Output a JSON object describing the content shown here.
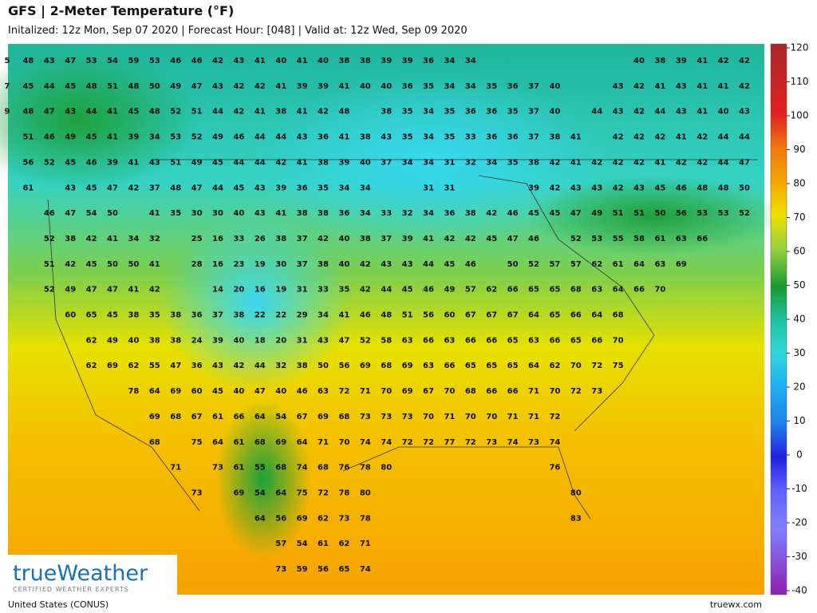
{
  "header": {
    "title": "GFS | 2-Meter Temperature (°F)",
    "subtitle": "Initalized: 12z Mon, Sep 07 2020 | Forecast Hour: [048] | Valid at: 12z Wed, Sep 09 2020"
  },
  "map": {
    "temperature_rows": [
      [
        5,
        48,
        43,
        47,
        53,
        54,
        59,
        53,
        46,
        46,
        42,
        43,
        41,
        40,
        41,
        40,
        38,
        38,
        39,
        39,
        36,
        34,
        34,
        null,
        null,
        null,
        null,
        null,
        null,
        null,
        40,
        38,
        39,
        41,
        42,
        42
      ],
      [
        7,
        45,
        44,
        45,
        48,
        51,
        48,
        50,
        49,
        47,
        43,
        42,
        42,
        41,
        39,
        39,
        41,
        40,
        40,
        36,
        35,
        34,
        34,
        35,
        36,
        37,
        40,
        null,
        null,
        43,
        42,
        41,
        43,
        41,
        41,
        42
      ],
      [
        9,
        48,
        47,
        43,
        44,
        41,
        45,
        48,
        52,
        51,
        44,
        42,
        41,
        38,
        41,
        42,
        48,
        null,
        38,
        35,
        34,
        35,
        36,
        36,
        35,
        37,
        40,
        null,
        44,
        43,
        42,
        44,
        43,
        41,
        40,
        43
      ],
      [
        null,
        51,
        46,
        49,
        45,
        41,
        39,
        34,
        53,
        52,
        49,
        46,
        44,
        44,
        43,
        36,
        41,
        38,
        43,
        35,
        34,
        35,
        33,
        36,
        36,
        37,
        38,
        41,
        null,
        42,
        42,
        42,
        41,
        42,
        44,
        44
      ],
      [
        null,
        56,
        52,
        45,
        46,
        39,
        41,
        43,
        51,
        49,
        45,
        44,
        44,
        42,
        41,
        38,
        39,
        40,
        37,
        34,
        34,
        31,
        32,
        34,
        35,
        38,
        42,
        41,
        42,
        42,
        42,
        41,
        42,
        42,
        44,
        47
      ],
      [
        null,
        61,
        null,
        43,
        45,
        47,
        42,
        37,
        48,
        47,
        44,
        45,
        43,
        39,
        36,
        35,
        34,
        34,
        null,
        null,
        31,
        31,
        null,
        null,
        null,
        39,
        42,
        43,
        43,
        42,
        43,
        45,
        46,
        48,
        48,
        50
      ],
      [
        null,
        null,
        46,
        47,
        54,
        50,
        null,
        41,
        35,
        30,
        30,
        40,
        43,
        41,
        38,
        38,
        36,
        34,
        33,
        32,
        34,
        36,
        38,
        42,
        46,
        45,
        45,
        47,
        49,
        51,
        51,
        50,
        56,
        53,
        53,
        52
      ],
      [
        null,
        null,
        52,
        38,
        42,
        41,
        34,
        32,
        null,
        25,
        16,
        33,
        26,
        38,
        37,
        42,
        40,
        38,
        37,
        39,
        41,
        42,
        42,
        45,
        47,
        46,
        null,
        52,
        53,
        55,
        58,
        61,
        63,
        66,
        null,
        null
      ],
      [
        null,
        null,
        51,
        42,
        45,
        50,
        50,
        41,
        null,
        28,
        16,
        23,
        19,
        30,
        37,
        38,
        40,
        42,
        43,
        43,
        44,
        45,
        46,
        null,
        50,
        52,
        57,
        57,
        62,
        61,
        64,
        63,
        69,
        null,
        null,
        null
      ],
      [
        null,
        null,
        52,
        49,
        47,
        47,
        41,
        42,
        null,
        null,
        14,
        20,
        16,
        19,
        31,
        33,
        35,
        42,
        44,
        45,
        46,
        49,
        57,
        62,
        66,
        65,
        65,
        68,
        63,
        64,
        66,
        70,
        null,
        null,
        null,
        null
      ],
      [
        null,
        null,
        null,
        60,
        65,
        45,
        38,
        35,
        38,
        36,
        37,
        38,
        22,
        22,
        29,
        34,
        41,
        46,
        48,
        51,
        56,
        60,
        67,
        67,
        67,
        64,
        65,
        66,
        64,
        68,
        null,
        null,
        null,
        null,
        null,
        null
      ],
      [
        null,
        null,
        null,
        null,
        62,
        49,
        40,
        38,
        38,
        24,
        39,
        40,
        18,
        20,
        31,
        43,
        47,
        52,
        58,
        63,
        66,
        63,
        66,
        66,
        65,
        63,
        66,
        65,
        66,
        70,
        null,
        null,
        null,
        null,
        null,
        null
      ],
      [
        null,
        null,
        null,
        null,
        62,
        69,
        62,
        55,
        47,
        36,
        43,
        42,
        44,
        32,
        38,
        50,
        56,
        69,
        68,
        69,
        63,
        66,
        65,
        65,
        65,
        64,
        62,
        70,
        72,
        75,
        null,
        null,
        null,
        null,
        null,
        null
      ],
      [
        null,
        null,
        null,
        null,
        null,
        null,
        78,
        64,
        69,
        60,
        45,
        40,
        47,
        40,
        46,
        63,
        72,
        71,
        70,
        69,
        67,
        70,
        68,
        66,
        66,
        71,
        70,
        72,
        73,
        null,
        null,
        null,
        null,
        null,
        null,
        null
      ],
      [
        null,
        null,
        null,
        null,
        null,
        null,
        null,
        69,
        68,
        67,
        61,
        66,
        64,
        54,
        67,
        69,
        68,
        73,
        73,
        73,
        70,
        71,
        70,
        70,
        71,
        71,
        72,
        null,
        null,
        null,
        null,
        null,
        null,
        null,
        null,
        null
      ],
      [
        null,
        null,
        null,
        null,
        null,
        null,
        null,
        68,
        null,
        75,
        64,
        61,
        68,
        69,
        64,
        71,
        70,
        74,
        74,
        72,
        72,
        77,
        72,
        73,
        74,
        73,
        74,
        null,
        null,
        null,
        null,
        null,
        null,
        null,
        null,
        null
      ],
      [
        null,
        null,
        null,
        null,
        null,
        null,
        null,
        null,
        71,
        null,
        73,
        61,
        55,
        68,
        74,
        68,
        76,
        78,
        80,
        null,
        null,
        null,
        null,
        null,
        null,
        null,
        76,
        null,
        null,
        null,
        null,
        null,
        null,
        null,
        null,
        null
      ],
      [
        null,
        null,
        null,
        null,
        null,
        null,
        null,
        null,
        null,
        73,
        null,
        69,
        54,
        64,
        75,
        72,
        78,
        80,
        null,
        null,
        null,
        null,
        null,
        null,
        null,
        null,
        null,
        80,
        null,
        null,
        null,
        null,
        null,
        null,
        null,
        null
      ],
      [
        null,
        null,
        null,
        null,
        null,
        null,
        null,
        null,
        null,
        null,
        null,
        null,
        64,
        56,
        69,
        62,
        73,
        78,
        null,
        null,
        null,
        null,
        null,
        null,
        null,
        null,
        null,
        83,
        null,
        null,
        null,
        null,
        null,
        null,
        null,
        null
      ],
      [
        null,
        null,
        null,
        null,
        null,
        null,
        null,
        null,
        null,
        null,
        null,
        null,
        null,
        57,
        54,
        61,
        62,
        71,
        null,
        null,
        null,
        null,
        null,
        null,
        null,
        null,
        null,
        null,
        null,
        null,
        null,
        null,
        null,
        null,
        null,
        null
      ],
      [
        null,
        null,
        null,
        null,
        null,
        null,
        null,
        null,
        null,
        null,
        null,
        null,
        null,
        73,
        59,
        56,
        65,
        74,
        null,
        null,
        null,
        null,
        null,
        null,
        null,
        null,
        null,
        null,
        null,
        null,
        null,
        null,
        null,
        null,
        null,
        null
      ]
    ]
  },
  "colorbar": {
    "ticks": [
      120,
      110,
      100,
      90,
      80,
      70,
      60,
      50,
      40,
      30,
      20,
      10,
      0,
      -10,
      -20,
      -30,
      -40
    ]
  },
  "logo": {
    "name": "trueWeather",
    "tagline": "CERTIFIED WEATHER EXPERTS"
  },
  "footer": {
    "region": "United States (CONUS)",
    "site": "truewx.com"
  }
}
